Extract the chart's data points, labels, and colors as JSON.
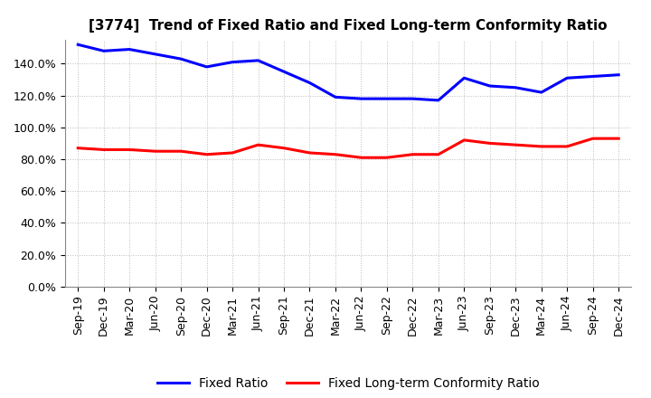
{
  "title": "[3774]  Trend of Fixed Ratio and Fixed Long-term Conformity Ratio",
  "labels": [
    "Sep-19",
    "Dec-19",
    "Mar-20",
    "Jun-20",
    "Sep-20",
    "Dec-20",
    "Mar-21",
    "Jun-21",
    "Sep-21",
    "Dec-21",
    "Mar-22",
    "Jun-22",
    "Sep-22",
    "Dec-22",
    "Mar-23",
    "Jun-23",
    "Sep-23",
    "Dec-23",
    "Mar-24",
    "Jun-24",
    "Sep-24",
    "Dec-24"
  ],
  "fixed_ratio": [
    152,
    148,
    149,
    146,
    143,
    138,
    141,
    142,
    135,
    128,
    119,
    118,
    118,
    118,
    117,
    131,
    126,
    125,
    122,
    131,
    132,
    133
  ],
  "fixed_lt_ratio": [
    87,
    86,
    86,
    85,
    85,
    83,
    84,
    89,
    87,
    84,
    83,
    81,
    81,
    83,
    83,
    92,
    90,
    89,
    88,
    88,
    93,
    93
  ],
  "fixed_ratio_color": "#0000FF",
  "fixed_lt_ratio_color": "#FF0000",
  "ylim": [
    0,
    155
  ],
  "yticks": [
    0,
    20,
    40,
    60,
    80,
    100,
    120,
    140
  ],
  "background_color": "#FFFFFF",
  "grid_color": "#AAAAAA",
  "legend_fixed": "Fixed Ratio",
  "legend_lt": "Fixed Long-term Conformity Ratio",
  "title_fontsize": 11,
  "tick_fontsize": 9,
  "legend_fontsize": 10
}
